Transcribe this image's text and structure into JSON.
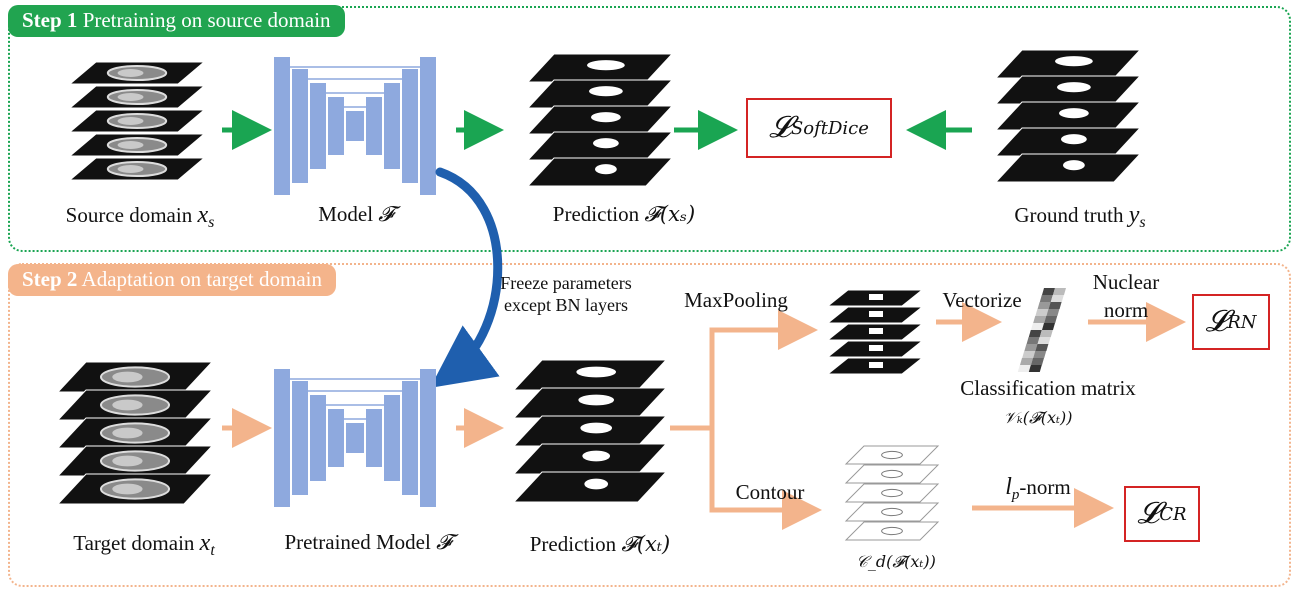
{
  "colors": {
    "green": "#1aa552",
    "orange": "#f3b48c",
    "unet": "#8ea9de",
    "loss_border": "#d42424",
    "blue_arrow": "#1f5fae"
  },
  "step1": {
    "number": "Step 1",
    "title": "Pretraining on source domain"
  },
  "step2": {
    "number": "Step 2",
    "title": "Adaptation on target domain"
  },
  "labels": {
    "source_domain": "Source domain",
    "source_var": "x",
    "source_sub": "s",
    "model": "Model",
    "model_sym": "𝓕",
    "prediction_s": "Prediction",
    "prediction_s_math": "𝓕(xₛ)",
    "ground_truth": "Ground truth",
    "gt_var": "y",
    "gt_sub": "s",
    "target_domain": "Target domain",
    "target_var": "x",
    "target_sub": "t",
    "pretrained_model": "Pretrained Model",
    "prediction_t": "Prediction",
    "prediction_t_math": "𝓕(xₜ)",
    "freeze_line1": "Freeze parameters",
    "freeze_line2": "except BN layers",
    "maxpooling": "MaxPooling",
    "vectorize": "Vectorize",
    "nuclear_line1": "Nuclear",
    "nuclear_line2": "norm",
    "classification_matrix": "Classification matrix",
    "vk_math": "𝒱ₖ(𝓕(xₜ))",
    "contour": "Contour",
    "lp_norm_l": "l",
    "lp_norm_p": "p",
    "lp_norm_rest": "-norm",
    "cd_math": "𝒞_d(𝓕(xₜ))"
  },
  "losses": {
    "softdice": {
      "symbol": "𝓛",
      "sub": "SoftDice"
    },
    "rn": {
      "symbol": "𝓛",
      "sub": "RN"
    },
    "cr": {
      "symbol": "𝓛",
      "sub": "CR"
    }
  }
}
